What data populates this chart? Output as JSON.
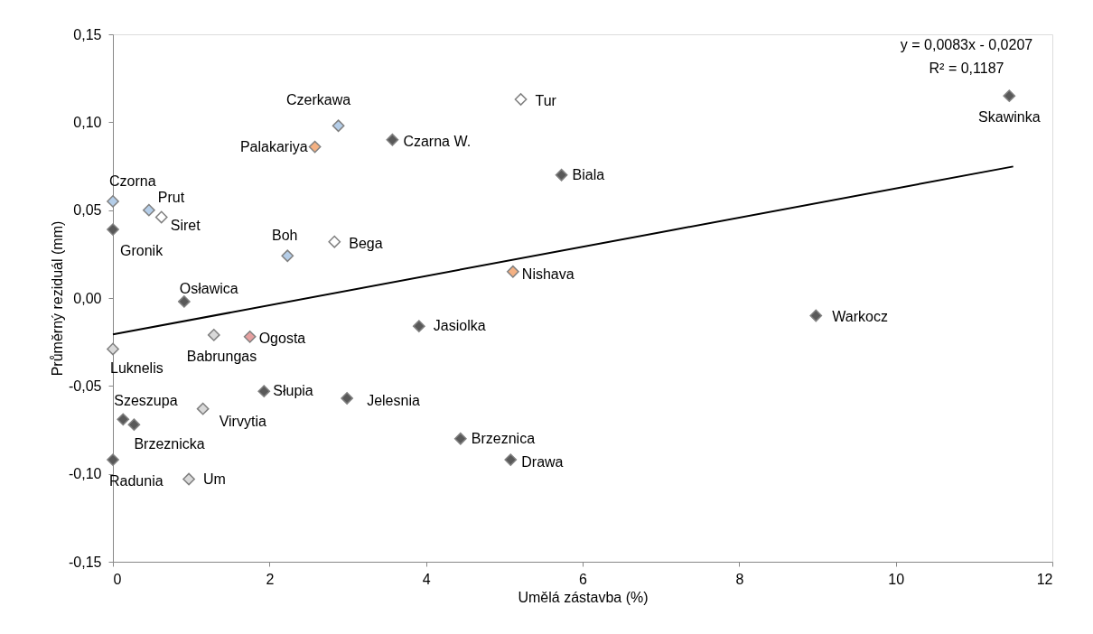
{
  "chart_data": {
    "type": "scatter",
    "xlabel": "Umělá zástavba (%)",
    "ylabel": "Průměrný reziduál (mm)",
    "xlim": [
      0,
      12
    ],
    "xticks": [
      0,
      2,
      4,
      6,
      8,
      10,
      12
    ],
    "ylim": [
      -0.15,
      0.15
    ],
    "yticks": [
      {
        "value": -0.15,
        "label": "-0,15"
      },
      {
        "value": -0.1,
        "label": "-0,10"
      },
      {
        "value": -0.05,
        "label": "-0,05"
      },
      {
        "value": 0,
        "label": "0,00"
      },
      {
        "value": 0.05,
        "label": "0,05"
      },
      {
        "value": 0.1,
        "label": "0,10"
      },
      {
        "value": 0.15,
        "label": "0,15"
      }
    ],
    "grid": false,
    "series": [
      {
        "color": "#595959",
        "marker": "diamond",
        "x": [
          0.0,
          0.91,
          3.91,
          1.93,
          2.99,
          0.13,
          0.27,
          0.0,
          4.44,
          5.08,
          3.57,
          5.73,
          8.98,
          11.45
        ],
        "values": [
          0.039,
          -0.002,
          -0.016,
          -0.053,
          -0.057,
          -0.069,
          -0.072,
          -0.092,
          -0.08,
          -0.092,
          0.09,
          0.07,
          -0.01,
          0.115
        ]
      },
      {
        "color": "#b4cde8",
        "marker": "diamond",
        "x": [
          2.88,
          0.0,
          0.46,
          2.23
        ],
        "values": [
          0.098,
          0.055,
          0.05,
          0.024
        ]
      },
      {
        "color": "#ffffff",
        "marker": "diamond",
        "x": [
          5.21,
          0.62,
          2.83
        ],
        "values": [
          0.113,
          0.046,
          0.032
        ]
      },
      {
        "color": "#f4b183",
        "marker": "diamond",
        "x": [
          2.58,
          5.11
        ],
        "values": [
          0.086,
          0.015
        ]
      },
      {
        "color": "#d9d9d9",
        "marker": "diamond",
        "x": [
          0.0,
          1.29,
          1.15,
          0.97
        ],
        "values": [
          -0.029,
          -0.021,
          -0.063,
          -0.103
        ]
      },
      {
        "color": "#e6a0a0",
        "marker": "diamond",
        "x": [
          1.75
        ],
        "values": [
          -0.022
        ]
      },
      {
        "type": "line",
        "color": "#000000",
        "line_style": "solid",
        "x": [
          0,
          11.5
        ],
        "values": [
          -0.0207,
          0.0748
        ]
      }
    ],
    "annotations": [
      {
        "text": "Gronik",
        "x": 0.0,
        "y": 0.039
      },
      {
        "text": "Osławica",
        "x": 0.91,
        "y": -0.002
      },
      {
        "text": "Jasiolka",
        "x": 3.91,
        "y": -0.016
      },
      {
        "text": "Słupia",
        "x": 1.93,
        "y": -0.053
      },
      {
        "text": "Jelesnia",
        "x": 2.99,
        "y": -0.057
      },
      {
        "text": "Szeszupa",
        "x": 0.13,
        "y": -0.069
      },
      {
        "text": "Brzeznicka",
        "x": 0.27,
        "y": -0.072
      },
      {
        "text": "Radunia",
        "x": 0.0,
        "y": -0.092
      },
      {
        "text": "Brzeznica",
        "x": 4.44,
        "y": -0.08
      },
      {
        "text": "Drawa",
        "x": 5.08,
        "y": -0.092
      },
      {
        "text": "Czarna W.",
        "x": 3.57,
        "y": 0.09
      },
      {
        "text": "Biala",
        "x": 5.73,
        "y": 0.07
      },
      {
        "text": "Warkocz",
        "x": 8.98,
        "y": -0.01
      },
      {
        "text": "Skawinka",
        "x": 11.45,
        "y": 0.115
      },
      {
        "text": "Czerkawa",
        "x": 2.88,
        "y": 0.098
      },
      {
        "text": "Czorna",
        "x": 0.0,
        "y": 0.055
      },
      {
        "text": "Prut",
        "x": 0.46,
        "y": 0.05
      },
      {
        "text": "Boh",
        "x": 2.23,
        "y": 0.024
      },
      {
        "text": "Tur",
        "x": 5.21,
        "y": 0.113
      },
      {
        "text": "Siret",
        "x": 0.62,
        "y": 0.046
      },
      {
        "text": "Bega",
        "x": 2.83,
        "y": 0.032
      },
      {
        "text": "Palakariya",
        "x": 2.58,
        "y": 0.086
      },
      {
        "text": "Nishava",
        "x": 5.11,
        "y": 0.015
      },
      {
        "text": "Luknelis",
        "x": 0.0,
        "y": -0.029
      },
      {
        "text": "Babrungas",
        "x": 1.29,
        "y": -0.021
      },
      {
        "text": "Virvytia",
        "x": 1.15,
        "y": -0.063
      },
      {
        "text": "Um",
        "x": 0.97,
        "y": -0.103
      },
      {
        "text": "Ogosta",
        "x": 1.75,
        "y": -0.022
      },
      "y = 0,0083x - 0,0207",
      "R² = 0,1187"
    ]
  }
}
